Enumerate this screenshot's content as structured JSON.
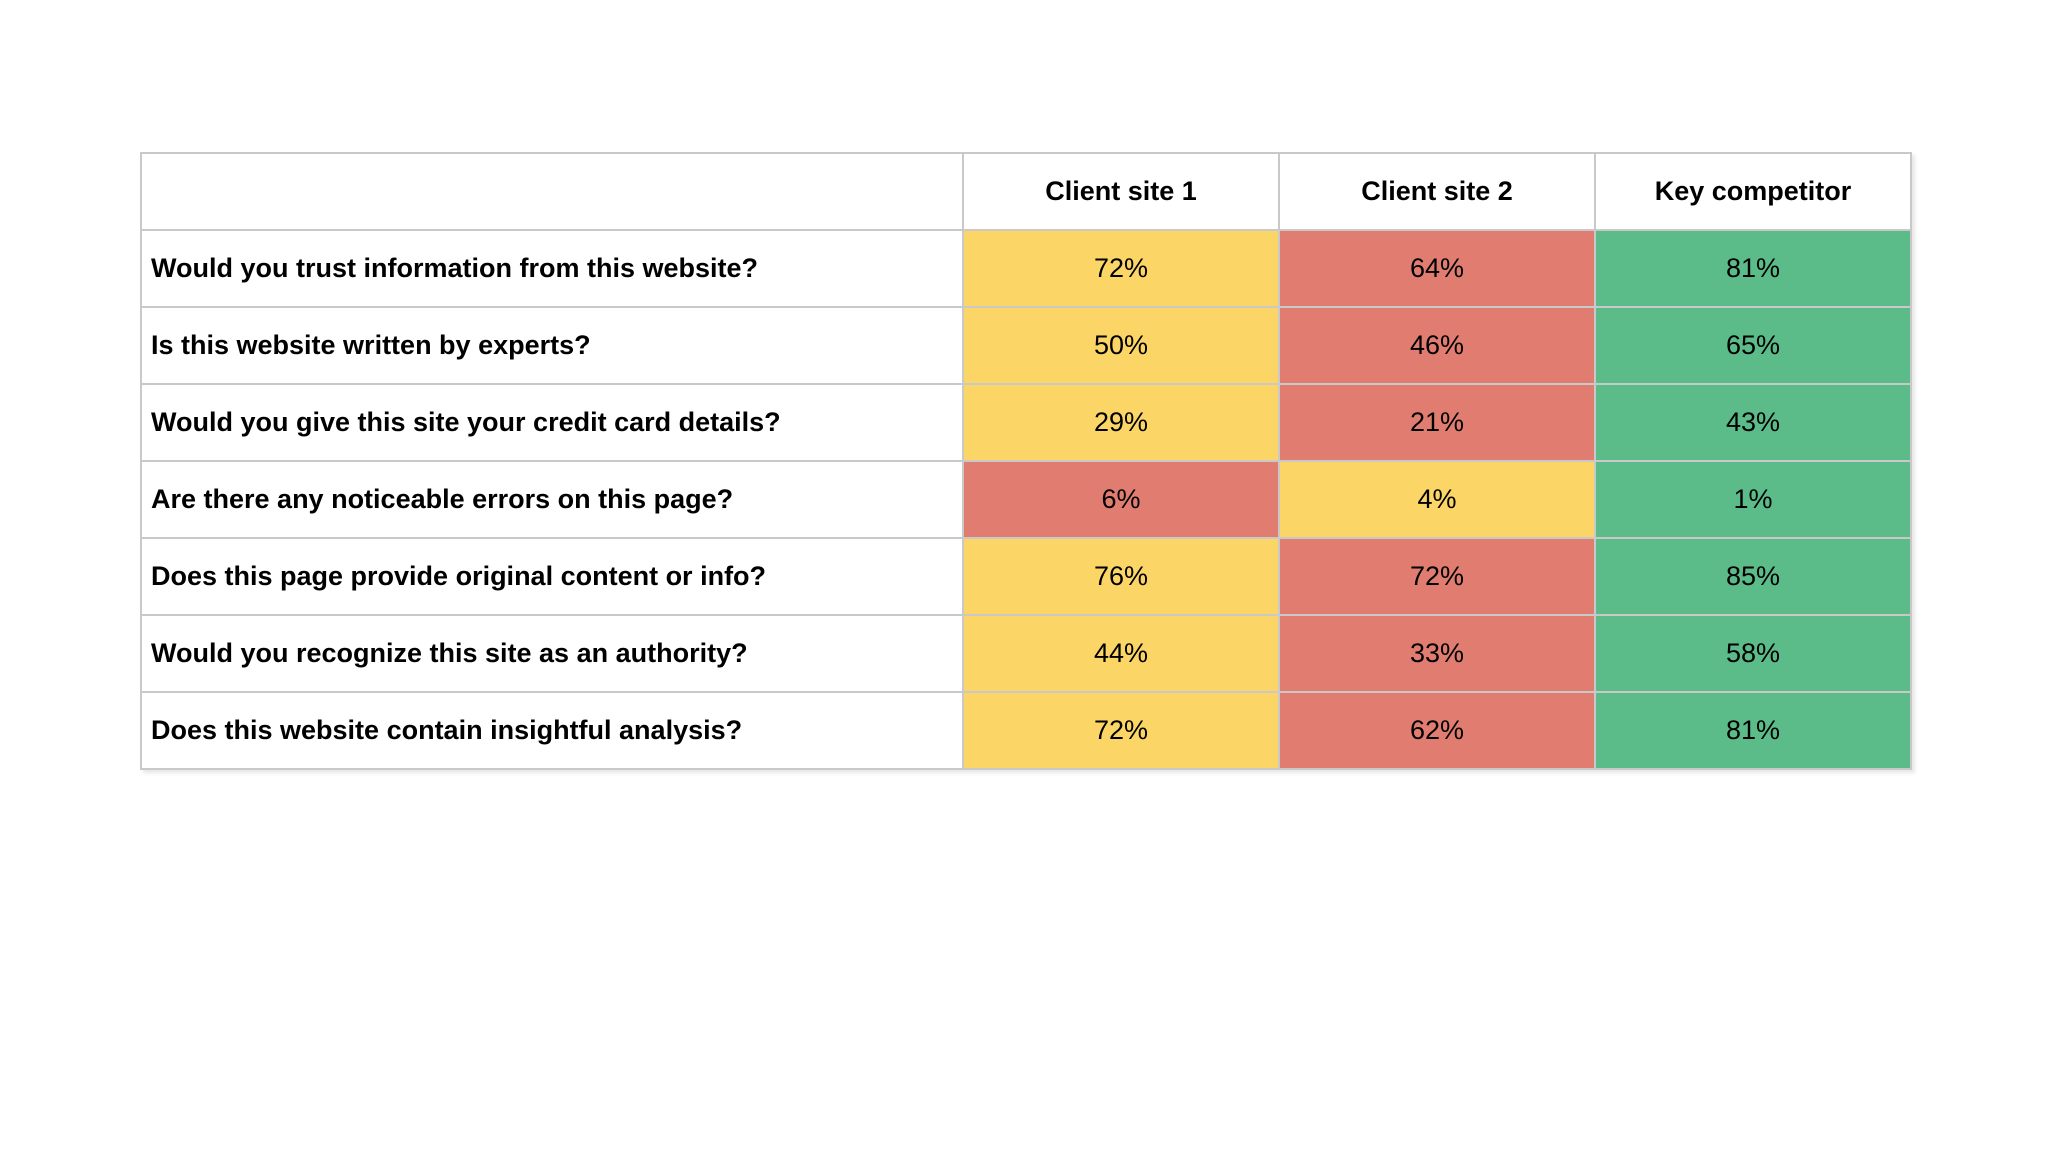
{
  "palette": {
    "yellow": "#FBD666",
    "red": "#E17D70",
    "green": "#5BBC8A",
    "grid_line": "#c9c9c9",
    "background": "#ffffff",
    "text": "#000000"
  },
  "table": {
    "corner_label": "",
    "columns": [
      "Client site 1",
      "Client site 2",
      "Key competitor"
    ],
    "rows": [
      {
        "question": "Would you trust information from this website?",
        "values": [
          "72%",
          "64%",
          "81%"
        ],
        "colors": [
          "#FBD666",
          "#E17D70",
          "#5BBC8A"
        ]
      },
      {
        "question": "Is this website written by experts?",
        "values": [
          "50%",
          "46%",
          "65%"
        ],
        "colors": [
          "#FBD666",
          "#E17D70",
          "#5BBC8A"
        ]
      },
      {
        "question": "Would you give this site your credit card details?",
        "values": [
          "29%",
          "21%",
          "43%"
        ],
        "colors": [
          "#FBD666",
          "#E17D70",
          "#5BBC8A"
        ]
      },
      {
        "question": "Are there any noticeable errors on this page?",
        "values": [
          "6%",
          "4%",
          "1%"
        ],
        "colors": [
          "#E17D70",
          "#FBD666",
          "#5BBC8A"
        ]
      },
      {
        "question": "Does this page provide original content or info?",
        "values": [
          "76%",
          "72%",
          "85%"
        ],
        "colors": [
          "#FBD666",
          "#E17D70",
          "#5BBC8A"
        ]
      },
      {
        "question": "Would you recognize this site as an authority?",
        "values": [
          "44%",
          "33%",
          "58%"
        ],
        "colors": [
          "#FBD666",
          "#E17D70",
          "#5BBC8A"
        ]
      },
      {
        "question": "Does this website contain insightful analysis?",
        "values": [
          "72%",
          "62%",
          "81%"
        ],
        "colors": [
          "#FBD666",
          "#E17D70",
          "#5BBC8A"
        ]
      }
    ]
  },
  "chart_data": {
    "type": "table",
    "title": "",
    "categories": [
      "Would you trust information from this website?",
      "Is this website written by experts?",
      "Would you give this site your credit card details?",
      "Are there any noticeable errors on this page?",
      "Does this page provide original content or info?",
      "Would you recognize this site as an authority?",
      "Does this website contain insightful analysis?"
    ],
    "series": [
      {
        "name": "Client site 1",
        "values": [
          72,
          50,
          29,
          6,
          76,
          44,
          72
        ]
      },
      {
        "name": "Client site 2",
        "values": [
          64,
          46,
          21,
          4,
          72,
          33,
          62
        ]
      },
      {
        "name": "Key competitor",
        "values": [
          81,
          65,
          43,
          1,
          85,
          58,
          81
        ]
      }
    ],
    "value_unit": "%",
    "color_semantics": {
      "green": "best score in row",
      "yellow": "middle score in row",
      "red": "worst score in row"
    },
    "legend_position": "none",
    "grid": true
  }
}
